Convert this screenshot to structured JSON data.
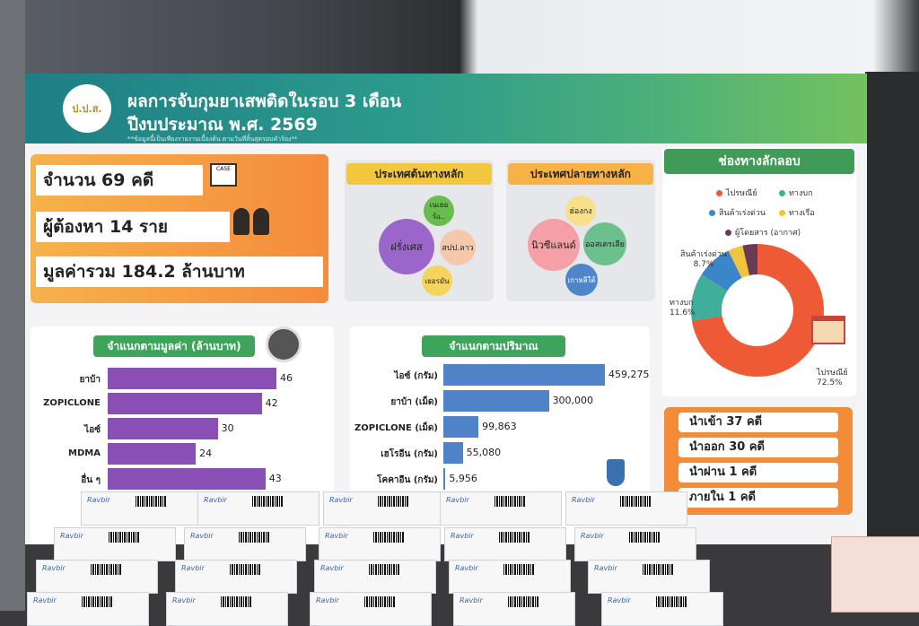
{
  "poster": {
    "title": "ผลการจับกุมยาเสพติดในรอบ 3 เดือน",
    "subtitle": "ปีงบประมาณ พ.ศ. 2569",
    "note": "**ข้อมูลนี้เป็นเพียงรายงานเบื้องต้น ตามวันที่สิ้นสุดรอบคำร้อง**",
    "logo_text": "ป.ป.ส."
  },
  "summary": {
    "cases": "จำนวน 69 คดี",
    "suspects": "ผู้ต้องหา 14 ราย",
    "total_value": "มูลค่ารวม 184.2 ล้านบาท",
    "case_icon_label": "CASE"
  },
  "origin": {
    "title": "ประเทศต้นทางหลัก",
    "items": [
      "ฝรั่งเศส",
      "เนเธอร์แ..",
      "สปป.ลาว",
      "เยอรมัน"
    ]
  },
  "destination": {
    "title": "ประเทศปลายทางหลัก",
    "items": [
      "ฮ่องกง",
      "นิวซีแลนด์",
      "ออสเตรเลีย",
      "เกาหลีใต้"
    ]
  },
  "channels": {
    "title": "ช่องทางลักลอบ",
    "legend": [
      "ไปรษณีย์",
      "ทางบก",
      "สินค้าเร่งด่วน",
      "ทางเรือ",
      "ผู้โดยสาร (อากาศ)"
    ],
    "colors": [
      "#ee5a35",
      "#3fae9a",
      "#3a86c8",
      "#f0c53c",
      "#6b3a55"
    ],
    "values": [
      72.5,
      11.6,
      8.7,
      3.6,
      3.6
    ],
    "labels": {
      "express": "สินค้าเร่งด่วน",
      "express_pct": "8.7%",
      "land": "ทางบก",
      "land_pct": "11.6%",
      "post": "ไปรษณีย์",
      "post_pct": "72.5%"
    }
  },
  "routes": [
    "นำเข้า 37 คดี",
    "นำออก 30 คดี",
    "นำผ่าน 1 คดี",
    "ภายใน 1 คดี"
  ],
  "value_chart": {
    "title": "จำแนกตามมูลค่า (ล้านบาท)",
    "categories": [
      "ยาบ้า",
      "ZOPICLONE",
      "ไอซ์",
      "MDMA",
      "อื่น ๆ"
    ],
    "values": [
      46,
      42,
      30,
      24,
      43
    ],
    "max": 46,
    "color": "#8a4fb5"
  },
  "qty_chart": {
    "title": "จำแนกตามปริมาณ",
    "categories": [
      "ไอซ์ (กรัม)",
      "ยาบ้า (เม็ด)",
      "ZOPICLONE (เม็ด)",
      "เฮโรอีน (กรัม)",
      "โคคาอีน (กรัม)"
    ],
    "values": [
      459275,
      300000,
      99863,
      55080,
      5956
    ],
    "value_labels": [
      "459,275",
      "300,000",
      "99,863",
      "55,080",
      "5,956"
    ],
    "max": 459275,
    "color": "#4f82c6"
  },
  "chart_data": [
    {
      "type": "bar",
      "title": "จำแนกตามมูลค่า (ล้านบาท)",
      "categories": [
        "ยาบ้า",
        "ZOPICLONE",
        "ไอซ์",
        "MDMA",
        "อื่น ๆ"
      ],
      "values": [
        46,
        42,
        30,
        24,
        43
      ]
    },
    {
      "type": "bar",
      "title": "จำแนกตามปริมาณ",
      "categories": [
        "ไอซ์ (กรัม)",
        "ยาบ้า (เม็ด)",
        "ZOPICLONE (เม็ด)",
        "เฮโรอีน (กรัม)",
        "โคคาอีน (กรัม)"
      ],
      "values": [
        459275,
        300000,
        99863,
        55080,
        5956
      ]
    },
    {
      "type": "pie",
      "title": "ช่องทางลักลอบ",
      "categories": [
        "ไปรษณีย์",
        "ทางบก",
        "สินค้าเร่งด่วน",
        "ทางเรือ",
        "ผู้โดยสาร (อากาศ)"
      ],
      "values": [
        72.5,
        11.6,
        8.7,
        3.6,
        3.6
      ]
    }
  ],
  "boxes": {
    "brand": "Ravbir"
  }
}
